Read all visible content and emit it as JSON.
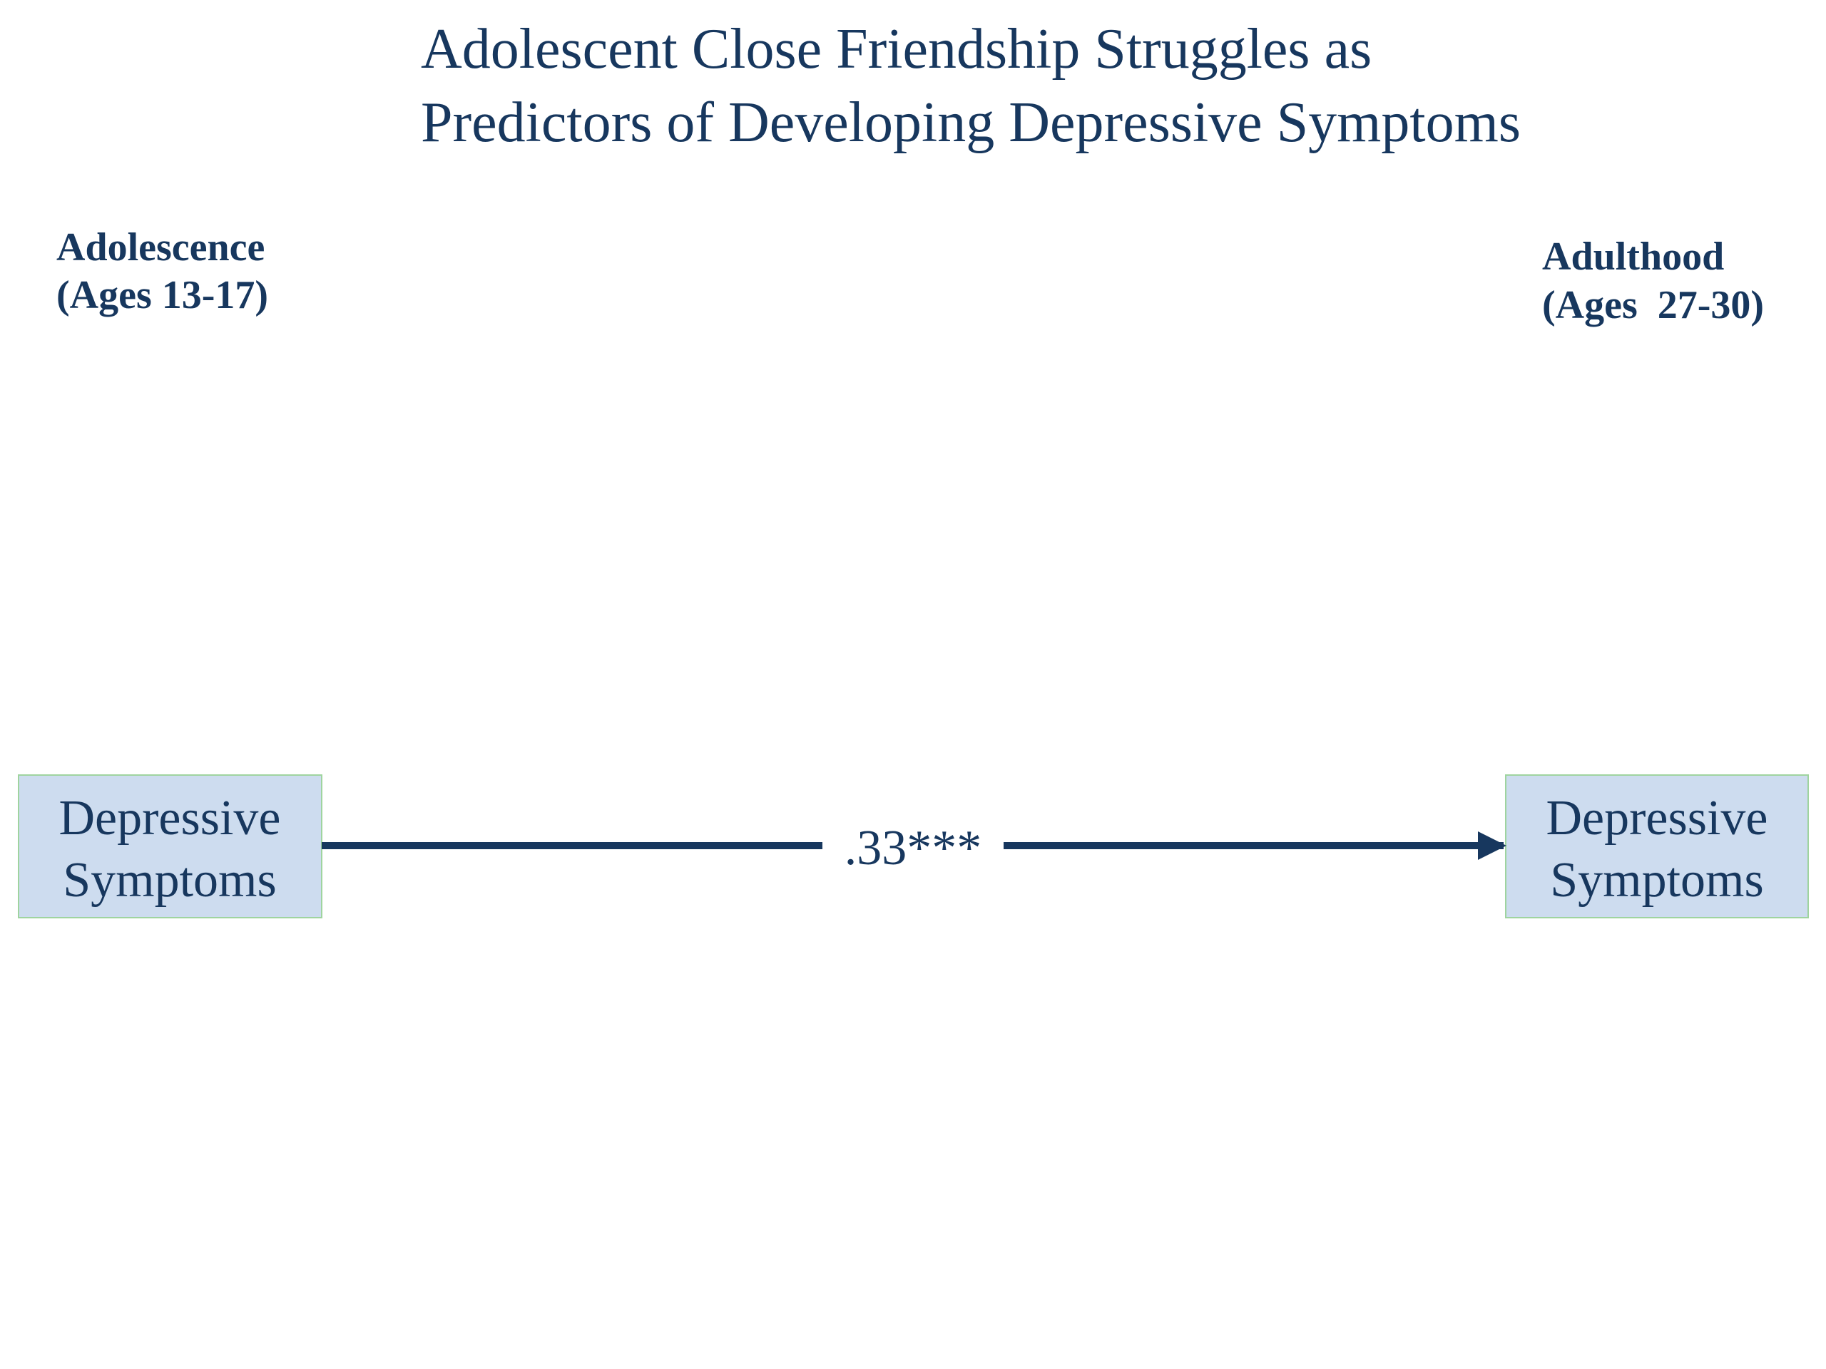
{
  "title": {
    "lines": [
      "Adolescent Close Friendship Struggles as",
      "Predictors of Developing Depressive Symptoms"
    ]
  },
  "periods": [
    {
      "name": "Adolescence",
      "ages": "(Ages 13-17)"
    },
    {
      "name": "Adulthood",
      "ages": "(Ages  27-30)"
    }
  ],
  "nodes": [
    {
      "label": [
        "Depressive",
        "Symptoms"
      ]
    },
    {
      "label": [
        "Depressive",
        "Symptoms"
      ]
    }
  ],
  "edges": [
    {
      "from": 0,
      "to": 1,
      "label": ".33***"
    }
  ]
}
